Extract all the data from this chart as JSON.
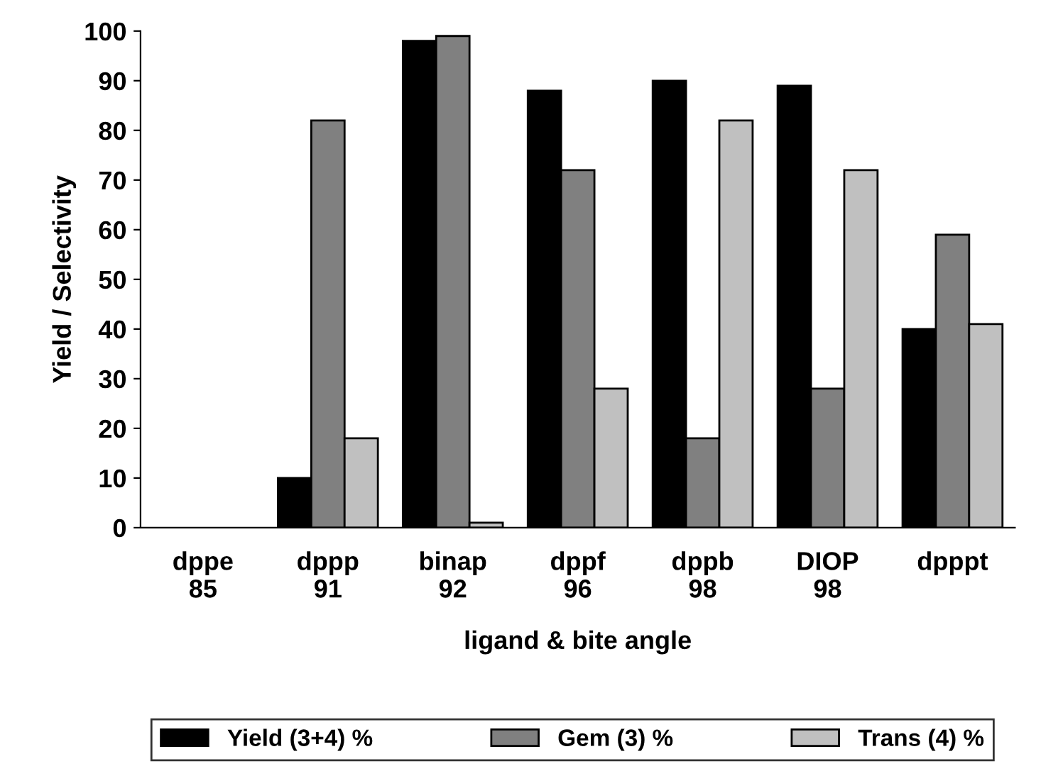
{
  "chart_data": {
    "type": "bar",
    "xlabel": "ligand & bite angle",
    "ylabel": "Yield / Selectivity",
    "categories": [
      "dppe\n85",
      "dppp\n91",
      "binap\n92",
      "dppf\n96",
      "dppb\n98",
      "DIOP\n98",
      "dpppt"
    ],
    "series": [
      {
        "name": "Yield (3+4) %",
        "color": "#000000",
        "values": [
          null,
          10,
          98,
          88,
          90,
          89,
          40
        ]
      },
      {
        "name": "Gem (3) %",
        "color": "#808080",
        "values": [
          null,
          82,
          99,
          72,
          18,
          28,
          59
        ]
      },
      {
        "name": "Trans (4) %",
        "color": "#c0c0c0",
        "values": [
          null,
          18,
          1,
          28,
          82,
          72,
          41
        ]
      }
    ],
    "ylim": [
      0,
      100
    ],
    "yticks": [
      0,
      10,
      20,
      30,
      40,
      50,
      60,
      70,
      80,
      90,
      100
    ],
    "grid": false,
    "legend": "bottom"
  }
}
